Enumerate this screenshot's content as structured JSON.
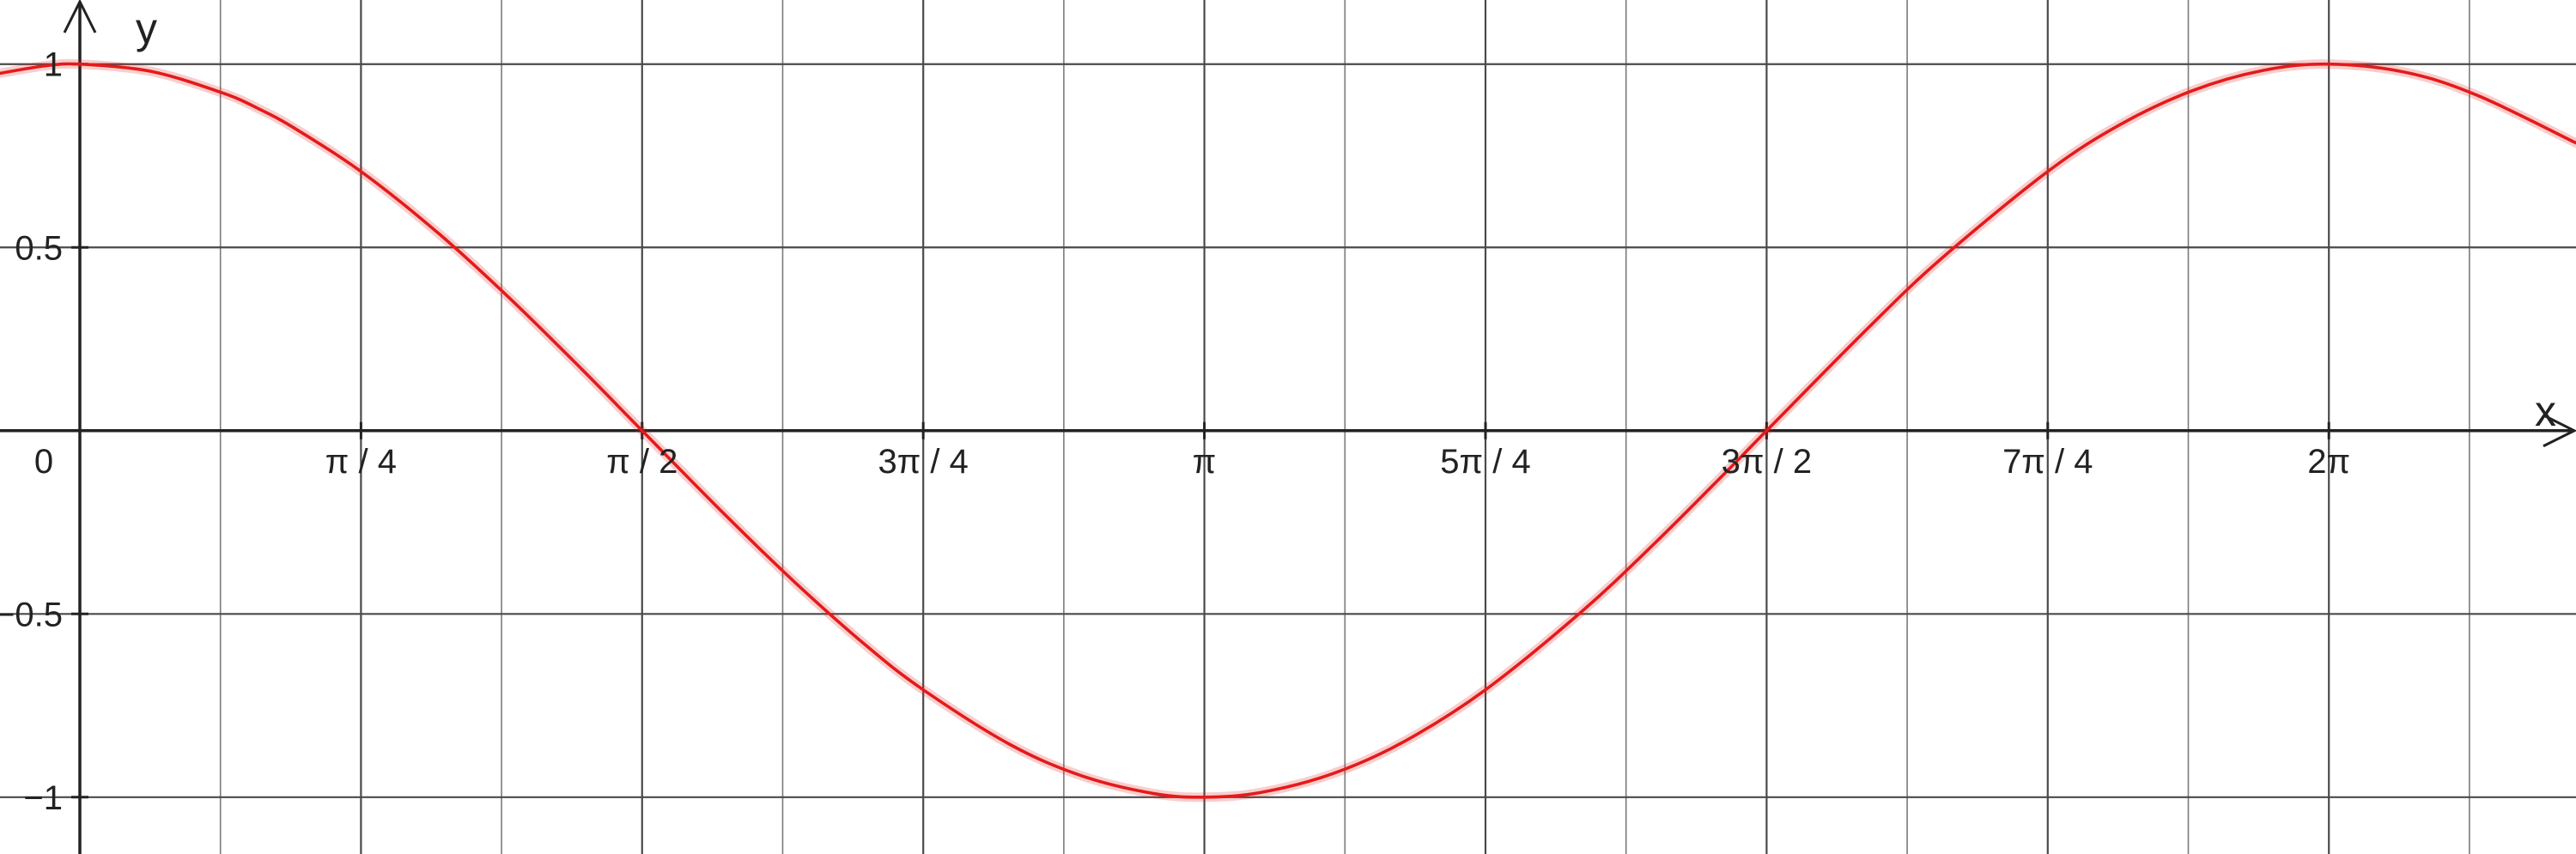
{
  "chart_data": {
    "type": "line",
    "title": "",
    "xlabel": "x",
    "ylabel": "y",
    "xlim": [
      -0.2231,
      6.9736
    ],
    "ylim": [
      -1.155,
      1.175
    ],
    "grid": true,
    "x_ticks": [
      {
        "value": 0,
        "label": "0"
      },
      {
        "value": 0.785398,
        "label": "π / 4"
      },
      {
        "value": 1.570796,
        "label": "π / 2"
      },
      {
        "value": 2.356194,
        "label": "3π / 4"
      },
      {
        "value": 3.141593,
        "label": "π"
      },
      {
        "value": 3.926991,
        "label": "5π / 4"
      },
      {
        "value": 4.712389,
        "label": "3π / 2"
      },
      {
        "value": 5.497787,
        "label": "7π / 4"
      },
      {
        "value": 6.283185,
        "label": "2π"
      }
    ],
    "y_ticks": [
      {
        "value": 1,
        "label": "1"
      },
      {
        "value": 0.5,
        "label": "0.5"
      },
      {
        "value": -0.5,
        "label": "−0.5"
      },
      {
        "value": -1,
        "label": "−1"
      }
    ],
    "series": [
      {
        "color": "#e31b1b",
        "x": [
          -0.2231,
          -0.1,
          0,
          0.2,
          0.4,
          0.5,
          0.6,
          0.785398,
          1.0,
          1.2,
          1.4,
          1.570796,
          1.8,
          2.0,
          2.2,
          2.356194,
          2.6,
          2.8,
          3.0,
          3.141593,
          3.3,
          3.5,
          3.7,
          3.926991,
          4.2,
          4.4,
          4.6,
          4.712389,
          5.0,
          5.2,
          5.497787,
          5.7,
          5.9,
          6.1,
          6.283185,
          6.5,
          6.7,
          6.9736
        ],
        "y": [
          0.975,
          0.995,
          1,
          0.98,
          0.921,
          0.878,
          0.825,
          0.707,
          0.54,
          0.362,
          0.17,
          0,
          -0.227,
          -0.416,
          -0.589,
          -0.707,
          -0.857,
          -0.942,
          -0.99,
          -1,
          -0.987,
          -0.936,
          -0.848,
          -0.707,
          -0.49,
          -0.307,
          -0.112,
          0,
          0.284,
          0.469,
          0.707,
          0.835,
          0.927,
          0.983,
          1,
          0.977,
          0.914,
          0.785
        ]
      }
    ]
  }
}
